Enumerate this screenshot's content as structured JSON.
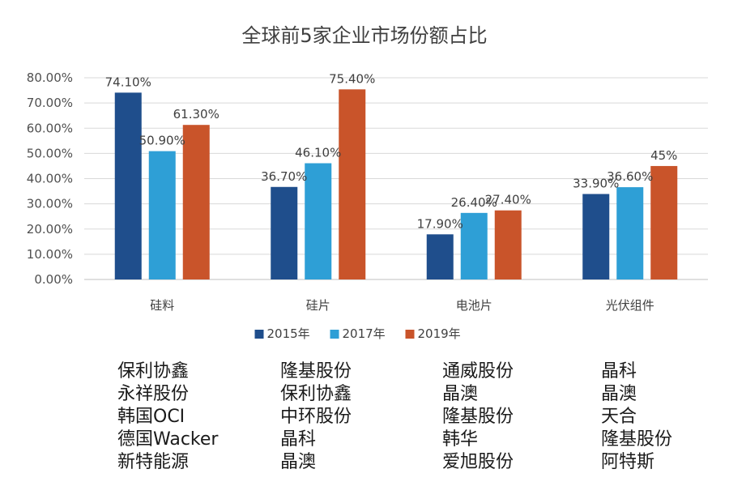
{
  "chart_data": {
    "type": "bar",
    "title": "全球前5家企业市场份额占比",
    "categories": [
      "硅料",
      "硅片",
      "电池片",
      "光伏组件"
    ],
    "series": [
      {
        "name": "2015年",
        "values": [
          74.1,
          36.7,
          17.9,
          33.9
        ],
        "labels": [
          "74.10%",
          "36.70%",
          "17.90%",
          "33.90%"
        ],
        "color": "#1f4e8c"
      },
      {
        "name": "2017年",
        "values": [
          50.9,
          46.1,
          26.4,
          36.6
        ],
        "labels": [
          "50.90%",
          "46.10%",
          "26.40%",
          "36.60%"
        ],
        "color": "#2e9fd6"
      },
      {
        "name": "2019年",
        "values": [
          61.3,
          75.4,
          27.4,
          45.0
        ],
        "labels": [
          "61.30%",
          "75.40%",
          "27.40%",
          "45%"
        ],
        "color": "#c9542a"
      }
    ],
    "ylim": [
      0,
      80
    ],
    "yticks": [
      "0.00%",
      "10.00%",
      "20.00%",
      "30.00%",
      "40.00%",
      "50.00%",
      "60.00%",
      "70.00%",
      "80.00%"
    ],
    "grid": true,
    "legend": "bottom"
  },
  "companies": [
    [
      "保利协鑫",
      "永祥股份",
      "韩国OCI",
      "德国Wacker",
      "新特能源"
    ],
    [
      "隆基股份",
      "保利协鑫",
      "中环股份",
      "晶科",
      "晶澳"
    ],
    [
      "通威股份",
      "晶澳",
      "隆基股份",
      "韩华",
      "爱旭股份"
    ],
    [
      "晶科",
      "晶澳",
      "天合",
      "隆基股份",
      "阿特斯"
    ]
  ]
}
